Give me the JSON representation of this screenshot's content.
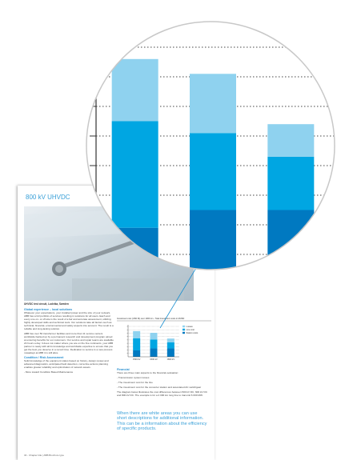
{
  "page": {
    "title": "800 kV UHVDC",
    "photo_caption": "UHVDC test circuit, Ludvika, Sweden",
    "left_sections": [
      {
        "heading": "Global experience – local solutions",
        "paragraphs": [
          "Whatever your expectations, your installed power and the size of your network, ABB has a full portfolio of services resulting in solutions for all users. Each and every one on- or off-site is the result of a fair and accurate assessment, utilizing highly developed skills and technical tools. Our solutions take all factors such as technical, financial, environmental and safety aspects into account. The result is a reliable and long-lasting solution.",
          "ABB has over 50 transformer facilities and more than 11 service centers worldwide backed up by a permanent research and development program aimed at ensuring benefits for our customers. Our service and repair teams are available 24 hours a day. It does not matter where you are on the five continents, your ABB partner is ready with all its knowledge and worldwide expertise to ensure that you get the best you deserve in a record time. Dedication to service is a new process nowadays at ABB it is still alive."
        ]
      },
      {
        "heading": "Condition / Risk Assessment",
        "paragraphs": [
          "Solid knowledge of the equipment status based on history, design review and advanced diagnostics, anticipated fault detection, corrective actions planning enables greater reliability and optimization of network assets.",
          "- More toward Condition Based Maintenance"
        ]
      }
    ],
    "right_sections": [
      {
        "heading": "Financial",
        "paragraphs": [
          "There are three main aspects to the financial evaluation:",
          "- Transmission system losses",
          "- The investment cost for the line",
          "- The investment cost for the converter station and associated AC switchgear",
          "The diagram below illustrates the cost differences between 500 kV DC, 600 kV DC and 800 kV DC. The example is for a 2 000 km long line to transmit 6 000 MW."
        ]
      }
    ],
    "quote": "When there are white areas you can use short descriptions for additional information. This can be a information about the efficiency of specific products.",
    "footer": "34 - Chapter title | ABB Brochure type"
  },
  "chart_data": {
    "type": "bar",
    "stacked": true,
    "title": "Investment cost (USD M) over 1000 km - Total investment costs in MUSD",
    "categories": [
      "±500 kV",
      "±600 kV",
      "±800 kV"
    ],
    "series": [
      {
        "name": "Station costs",
        "color": "#0079c1",
        "values": [
          1.9,
          2.5,
          2.5
        ]
      },
      {
        "name": "Line cost",
        "color": "#00a6e2",
        "values": [
          3.6,
          2.6,
          1.8
        ]
      },
      {
        "name": "Losses",
        "color": "#8fd2ef",
        "values": [
          2.1,
          2.0,
          1.1
        ]
      }
    ],
    "ylim": [
      0,
      9
    ],
    "yticks": [
      1,
      2,
      3,
      4,
      5,
      6,
      7,
      8,
      9
    ],
    "grid": true
  }
}
